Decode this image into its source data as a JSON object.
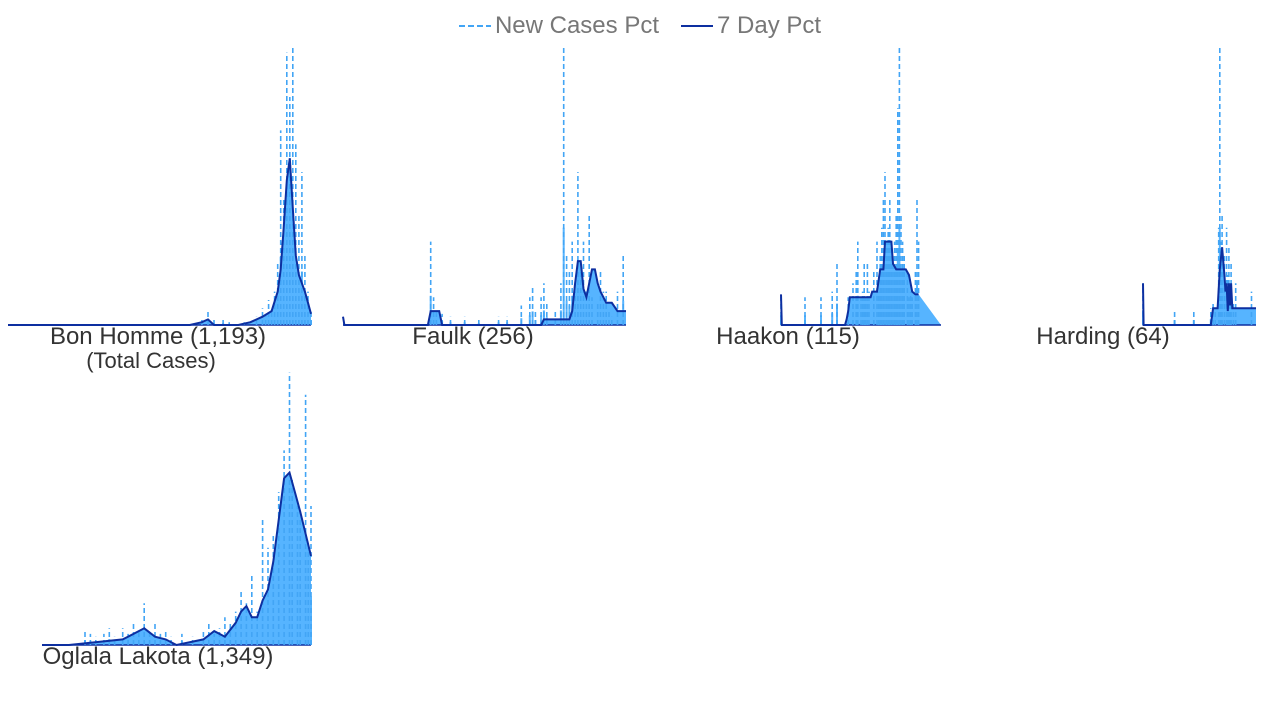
{
  "legend": {
    "new_cases_label": "New Cases Pct",
    "seven_day_label": "7 Day Pct"
  },
  "colors": {
    "new_cases": "#42a5f5",
    "seven_day": "#0d2fa0",
    "fill": "#56b4ff",
    "baseline": "#0d2fa0",
    "text": "#333333",
    "legend_text": "#777777"
  },
  "subtitle": "(Total Cases)",
  "chart_data": [
    {
      "type": "area",
      "title": "Bon Homme (1,193)",
      "x_range": [
        0,
        100
      ],
      "y_range": [
        0,
        1
      ],
      "spikes": [
        [
          64,
          0.02
        ],
        [
          66,
          0.05
        ],
        [
          68,
          0.02
        ],
        [
          71,
          0.02
        ],
        [
          73,
          0.01
        ],
        [
          78,
          0.01
        ],
        [
          82,
          0.03
        ],
        [
          84,
          0.06
        ],
        [
          85,
          0.04
        ],
        [
          86,
          0.09
        ],
        [
          87,
          0.05
        ],
        [
          88,
          0.12
        ],
        [
          89,
          0.22
        ],
        [
          90,
          0.7
        ],
        [
          91,
          0.45
        ],
        [
          92,
          0.98
        ],
        [
          93,
          0.82
        ],
        [
          94,
          1.0
        ],
        [
          95,
          0.65
        ],
        [
          96,
          0.4
        ],
        [
          97,
          0.55
        ],
        [
          98,
          0.25
        ],
        [
          99,
          0.12
        ],
        [
          100,
          0.05
        ]
      ],
      "seven_day": [
        [
          0,
          0
        ],
        [
          60,
          0
        ],
        [
          64,
          0.01
        ],
        [
          66,
          0.02
        ],
        [
          68,
          0.0
        ],
        [
          76,
          0.0
        ],
        [
          80,
          0.01
        ],
        [
          84,
          0.03
        ],
        [
          87,
          0.05
        ],
        [
          89,
          0.12
        ],
        [
          90,
          0.2
        ],
        [
          91,
          0.35
        ],
        [
          92,
          0.52
        ],
        [
          93,
          0.6
        ],
        [
          94,
          0.42
        ],
        [
          95,
          0.25
        ],
        [
          96,
          0.18
        ],
        [
          97,
          0.15
        ],
        [
          98,
          0.12
        ],
        [
          99,
          0.08
        ],
        [
          100,
          0.04
        ]
      ]
    },
    {
      "type": "area",
      "title": "Faulk (256)",
      "x_range": [
        0,
        100
      ],
      "y_range": [
        0,
        1
      ],
      "spikes": [
        [
          31,
          0.3
        ],
        [
          32,
          0.1
        ],
        [
          33,
          0.05
        ],
        [
          35,
          0.04
        ],
        [
          38,
          0.03
        ],
        [
          43,
          0.03
        ],
        [
          48,
          0.02
        ],
        [
          55,
          0.03
        ],
        [
          58,
          0.03
        ],
        [
          63,
          0.07
        ],
        [
          66,
          0.1
        ],
        [
          67,
          0.14
        ],
        [
          68,
          0.05
        ],
        [
          70,
          0.1
        ],
        [
          71,
          0.15
        ],
        [
          72,
          0.08
        ],
        [
          75,
          0.05
        ],
        [
          77,
          0.15
        ],
        [
          78,
          1.0
        ],
        [
          79,
          0.25
        ],
        [
          80,
          0.2
        ],
        [
          81,
          0.3
        ],
        [
          82,
          0.12
        ],
        [
          83,
          0.55
        ],
        [
          84,
          0.2
        ],
        [
          85,
          0.3
        ],
        [
          86,
          0.12
        ],
        [
          87,
          0.4
        ],
        [
          88,
          0.1
        ],
        [
          90,
          0.08
        ],
        [
          91,
          0.2
        ],
        [
          92,
          0.12
        ],
        [
          93,
          0.12
        ],
        [
          94,
          0.05
        ],
        [
          95,
          0.03
        ],
        [
          97,
          0.12
        ],
        [
          99,
          0.25
        ]
      ],
      "seven_day": [
        [
          0,
          0.03
        ],
        [
          0.5,
          0
        ],
        [
          30,
          0
        ],
        [
          31,
          0.05
        ],
        [
          34,
          0.05
        ],
        [
          35,
          0
        ],
        [
          70,
          0
        ],
        [
          71,
          0.02
        ],
        [
          80,
          0.02
        ],
        [
          81,
          0.05
        ],
        [
          82,
          0.15
        ],
        [
          83,
          0.23
        ],
        [
          84,
          0.23
        ],
        [
          85,
          0.13
        ],
        [
          86,
          0.1
        ],
        [
          87,
          0.15
        ],
        [
          88,
          0.2
        ],
        [
          89,
          0.2
        ],
        [
          90,
          0.15
        ],
        [
          91,
          0.12
        ],
        [
          93,
          0.08
        ],
        [
          95,
          0.08
        ],
        [
          97,
          0.05
        ],
        [
          100,
          0.05
        ]
      ]
    },
    {
      "type": "area",
      "title": "Haakon (115)",
      "x_range": [
        0,
        100
      ],
      "y_range": [
        0,
        1
      ],
      "spikes": [
        [
          0,
          0.1
        ],
        [
          15,
          0.1
        ],
        [
          25,
          0.1
        ],
        [
          32,
          0.12
        ],
        [
          35,
          0.22
        ],
        [
          42,
          0.1
        ],
        [
          45,
          0.15
        ],
        [
          47,
          0.2
        ],
        [
          48,
          0.3
        ],
        [
          50,
          0.1
        ],
        [
          51,
          0.12
        ],
        [
          52,
          0.22
        ],
        [
          53,
          0.1
        ],
        [
          54,
          0.22
        ],
        [
          55,
          0.12
        ],
        [
          58,
          0.2
        ],
        [
          60,
          0.3
        ],
        [
          61,
          0.12
        ],
        [
          62,
          0.25
        ],
        [
          63,
          0.35
        ],
        [
          64,
          0.45
        ],
        [
          65,
          0.55
        ],
        [
          66,
          0.3
        ],
        [
          67,
          0.35
        ],
        [
          68,
          0.45
        ],
        [
          69,
          0.3
        ],
        [
          70,
          0.25
        ],
        [
          71,
          0.3
        ],
        [
          72,
          0.4
        ],
        [
          73,
          0.78
        ],
        [
          74,
          1.0
        ],
        [
          75,
          0.4
        ],
        [
          76,
          0.3
        ],
        [
          77,
          0.25
        ],
        [
          79,
          0.2
        ],
        [
          80,
          0.1
        ],
        [
          81,
          0.12
        ],
        [
          82,
          0.1
        ],
        [
          84,
          0.2
        ],
        [
          85,
          0.45
        ],
        [
          86,
          0.3
        ]
      ],
      "seven_day": [
        [
          0,
          0.11
        ],
        [
          0.5,
          0
        ],
        [
          40,
          0
        ],
        [
          41,
          0.02
        ],
        [
          42,
          0.05
        ],
        [
          43,
          0.1
        ],
        [
          56,
          0.1
        ],
        [
          57,
          0.12
        ],
        [
          60,
          0.12
        ],
        [
          62,
          0.2
        ],
        [
          64,
          0.2
        ],
        [
          65,
          0.3
        ],
        [
          67,
          0.3
        ],
        [
          69,
          0.3
        ],
        [
          70,
          0.22
        ],
        [
          72,
          0.2
        ],
        [
          74,
          0.2
        ],
        [
          76,
          0.2
        ],
        [
          78,
          0.2
        ],
        [
          80,
          0.18
        ],
        [
          82,
          0.12
        ],
        [
          84,
          0.11
        ],
        [
          86,
          0.11
        ]
      ]
    },
    {
      "type": "area",
      "title": "Harding (64)",
      "x_range": [
        0,
        100
      ],
      "y_range": [
        0,
        1
      ],
      "spikes": [
        [
          0,
          0.15
        ],
        [
          28,
          0.05
        ],
        [
          45,
          0.05
        ],
        [
          60,
          0.06
        ],
        [
          62,
          0.08
        ],
        [
          64,
          0.06
        ],
        [
          67,
          0.35
        ],
        [
          68,
          1.0
        ],
        [
          69,
          0.3
        ],
        [
          70,
          0.4
        ],
        [
          72,
          0.25
        ],
        [
          74,
          0.35
        ],
        [
          75,
          0.18
        ],
        [
          76,
          0.28
        ],
        [
          77,
          0.15
        ],
        [
          78,
          0.22
        ],
        [
          80,
          0.08
        ],
        [
          82,
          0.15
        ],
        [
          96,
          0.12
        ]
      ],
      "seven_day": [
        [
          0,
          0.15
        ],
        [
          0.5,
          0
        ],
        [
          60,
          0
        ],
        [
          62,
          0.06
        ],
        [
          66,
          0.06
        ],
        [
          68,
          0.2
        ],
        [
          70,
          0.28
        ],
        [
          72,
          0.18
        ],
        [
          73,
          0.12
        ],
        [
          74,
          0.15
        ],
        [
          75,
          0.05
        ],
        [
          76,
          0.15
        ],
        [
          77,
          0.07
        ],
        [
          78,
          0.15
        ],
        [
          79,
          0.06
        ],
        [
          80,
          0.06
        ],
        [
          100,
          0.06
        ]
      ]
    },
    {
      "type": "area",
      "title": "Oglala Lakota (1,349)",
      "x_range": [
        0,
        100
      ],
      "y_range": [
        0,
        1
      ],
      "spikes": [
        [
          16,
          0.05
        ],
        [
          18,
          0.04
        ],
        [
          20,
          0.03
        ],
        [
          23,
          0.04
        ],
        [
          25,
          0.06
        ],
        [
          27,
          0.03
        ],
        [
          30,
          0.06
        ],
        [
          32,
          0.04
        ],
        [
          34,
          0.08
        ],
        [
          36,
          0.05
        ],
        [
          38,
          0.15
        ],
        [
          40,
          0.05
        ],
        [
          42,
          0.08
        ],
        [
          44,
          0.04
        ],
        [
          46,
          0.05
        ],
        [
          48,
          0.03
        ],
        [
          52,
          0.04
        ],
        [
          56,
          0.03
        ],
        [
          60,
          0.05
        ],
        [
          62,
          0.08
        ],
        [
          64,
          0.04
        ],
        [
          66,
          0.06
        ],
        [
          68,
          0.1
        ],
        [
          70,
          0.08
        ],
        [
          72,
          0.12
        ],
        [
          74,
          0.2
        ],
        [
          76,
          0.15
        ],
        [
          78,
          0.25
        ],
        [
          80,
          0.12
        ],
        [
          82,
          0.45
        ],
        [
          84,
          0.35
        ],
        [
          86,
          0.4
        ],
        [
          88,
          0.55
        ],
        [
          90,
          0.7
        ],
        [
          92,
          0.98
        ],
        [
          93,
          0.6
        ],
        [
          95,
          0.5
        ],
        [
          96,
          0.45
        ],
        [
          98,
          0.9
        ],
        [
          99,
          0.35
        ],
        [
          100,
          0.5
        ]
      ],
      "seven_day": [
        [
          0,
          0
        ],
        [
          10,
          0
        ],
        [
          30,
          0.02
        ],
        [
          34,
          0.04
        ],
        [
          38,
          0.06
        ],
        [
          42,
          0.03
        ],
        [
          46,
          0.02
        ],
        [
          50,
          0.0
        ],
        [
          60,
          0.02
        ],
        [
          64,
          0.05
        ],
        [
          68,
          0.03
        ],
        [
          72,
          0.08
        ],
        [
          74,
          0.12
        ],
        [
          76,
          0.14
        ],
        [
          78,
          0.1
        ],
        [
          80,
          0.1
        ],
        [
          82,
          0.16
        ],
        [
          84,
          0.2
        ],
        [
          86,
          0.3
        ],
        [
          88,
          0.45
        ],
        [
          90,
          0.6
        ],
        [
          92,
          0.62
        ],
        [
          94,
          0.55
        ],
        [
          96,
          0.48
        ],
        [
          98,
          0.4
        ],
        [
          100,
          0.32
        ]
      ]
    }
  ]
}
